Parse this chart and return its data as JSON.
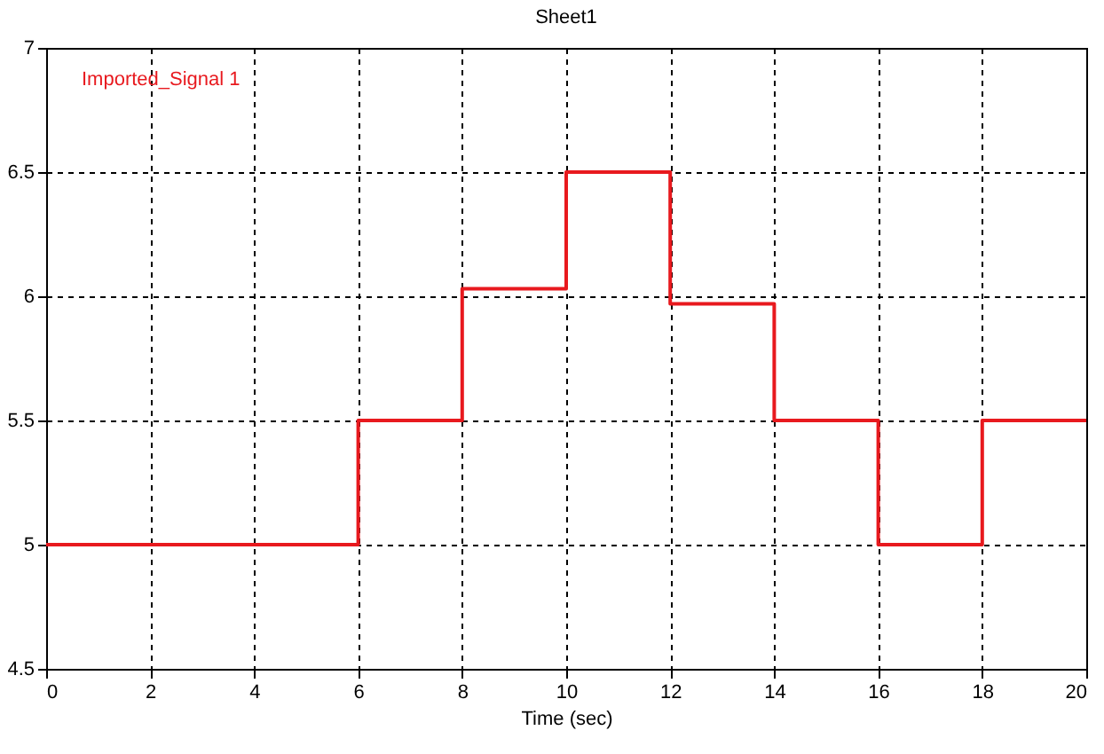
{
  "chart_data": {
    "type": "step",
    "title": "Sheet1",
    "xlabel": "Time (sec)",
    "x": [
      0,
      6,
      8,
      10,
      12,
      14,
      16,
      18,
      20
    ],
    "series": [
      {
        "name": "Imported_Signal 1",
        "color": "#e8191e",
        "values": [
          5,
          5.5,
          6.03,
          6.5,
          5.97,
          5.5,
          5,
          5.5,
          5.5
        ]
      }
    ],
    "xlim": [
      0,
      20
    ],
    "xticks": [
      0,
      2,
      4,
      6,
      8,
      10,
      12,
      14,
      16,
      18,
      20
    ],
    "ylim": [
      4.5,
      7
    ],
    "yticks": [
      4.5,
      5,
      5.5,
      6,
      6.5,
      7
    ],
    "grid": true,
    "legend": "top left",
    "line_style": "solid"
  }
}
